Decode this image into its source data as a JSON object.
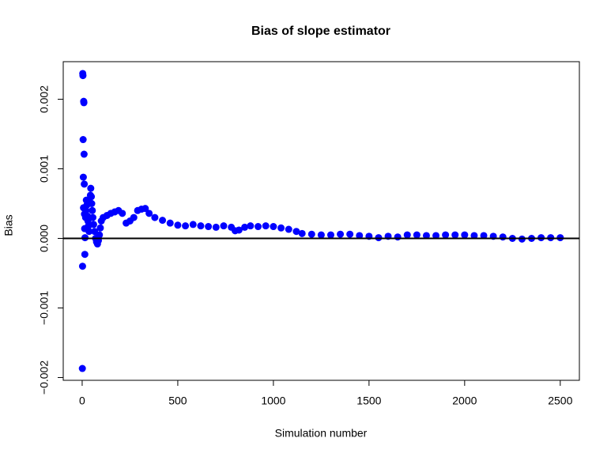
{
  "chart_data": {
    "type": "scatter",
    "title": "Bias of slope estimator",
    "x_label": "Simulation number",
    "y_label": "Bias",
    "color": "#0000ff",
    "reference_line": 0,
    "xlim": [
      -99,
      2600
    ],
    "xticks": [
      0,
      500,
      1000,
      1500,
      2000,
      2500
    ],
    "ylim": [
      -0.00204,
      0.00254
    ],
    "yticks": [
      {
        "value": -0.002,
        "label": "−0.002"
      },
      {
        "value": -0.001,
        "label": "−0.001"
      },
      {
        "value": 0,
        "label": "0.000"
      },
      0.001,
      0.002
    ],
    "x": [
      1,
      2,
      3,
      4,
      5,
      6,
      7,
      8,
      9,
      10,
      11,
      12,
      13,
      14,
      15,
      18,
      20,
      22,
      25,
      28,
      30,
      33,
      36,
      40,
      43,
      45,
      48,
      50,
      53,
      56,
      60,
      65,
      70,
      75,
      80,
      85,
      90,
      95,
      100,
      110,
      130,
      150,
      170,
      190,
      210,
      230,
      250,
      270,
      290,
      310,
      330,
      350,
      380,
      420,
      460,
      500,
      540,
      580,
      620,
      660,
      700,
      740,
      780,
      800,
      820,
      850,
      880,
      920,
      960,
      1000,
      1040,
      1080,
      1120,
      1150,
      1200,
      1250,
      1300,
      1350,
      1400,
      1450,
      1500,
      1550,
      1600,
      1650,
      1700,
      1750,
      1800,
      1850,
      1900,
      1950,
      2000,
      2050,
      2100,
      2150,
      2200,
      2250,
      2300,
      2350,
      2400,
      2450,
      2500
    ],
    "values": [
      -0.00187,
      -0.0004,
      0.00237,
      0.00234,
      0.00142,
      0.00088,
      0.00044,
      0.00197,
      0.00195,
      0.00121,
      0.00078,
      0.00035,
      0.00014,
      -0.00023,
      1e-05,
      0.0003,
      0.0004,
      0.00055,
      0.00048,
      0.00032,
      0.00025,
      0.00018,
      0.0001,
      0.00052,
      0.00062,
      0.00072,
      0.0006,
      0.0005,
      0.0004,
      0.0003,
      0.0002,
      0.0001,
      0,
      -5e-05,
      -8e-05,
      -3e-05,
      5e-05,
      0.00015,
      0.00025,
      0.0003,
      0.00033,
      0.00036,
      0.00038,
      0.0004,
      0.00036,
      0.00022,
      0.00025,
      0.0003,
      0.0004,
      0.00042,
      0.00043,
      0.00036,
      0.0003,
      0.00026,
      0.00022,
      0.00019,
      0.00018,
      0.0002,
      0.00018,
      0.00017,
      0.00016,
      0.00018,
      0.00016,
      0.00011,
      0.00012,
      0.00016,
      0.00018,
      0.00017,
      0.00018,
      0.00017,
      0.00015,
      0.00013,
      0.0001,
      7e-05,
      6e-05,
      5e-05,
      5e-05,
      6e-05,
      6e-05,
      4e-05,
      3e-05,
      1e-05,
      3e-05,
      2e-05,
      5e-05,
      5e-05,
      4e-05,
      4e-05,
      5e-05,
      5e-05,
      5e-05,
      4e-05,
      4e-05,
      3e-05,
      2e-05,
      0,
      -1e-05,
      0,
      1e-05,
      1e-05,
      1e-05
    ]
  }
}
